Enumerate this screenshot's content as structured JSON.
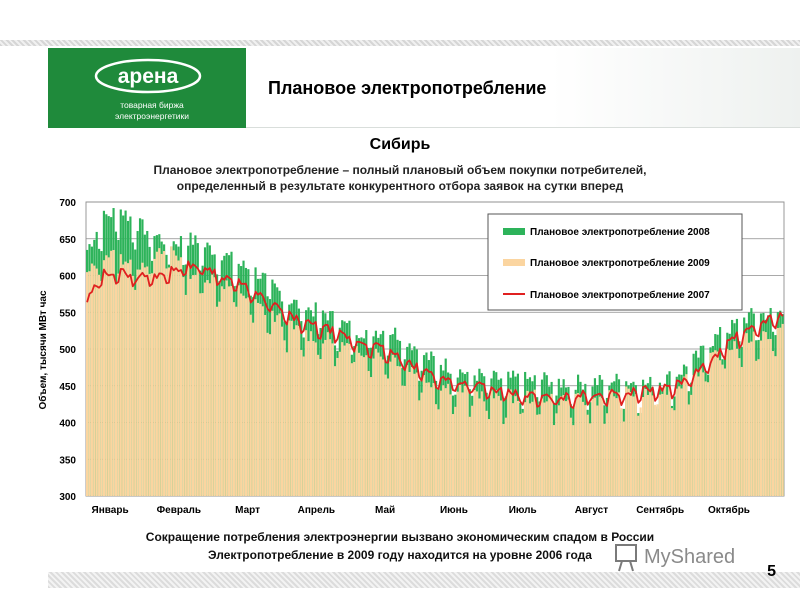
{
  "header": {
    "title": "Плановое электропотребление",
    "logo_text": "арена",
    "logo_caption_1": "товарная биржа",
    "logo_caption_2": "электроэнергетики"
  },
  "region": "Сибирь",
  "subtitle_line1": "Плановое электропотребление – полный плановый объем покупки потребителей,",
  "subtitle_line2": "определенный в результате конкурентного отбора заявок на сутки вперед",
  "footer_line1": "Сокращение потребления электроэнергии вызвано экономическим спадом в России",
  "footer_line2": "Электропотребление в 2009 году находится на уровне 2006 года",
  "page_number": "5",
  "watermark_text": "MyShared",
  "colors": {
    "series_2008": "#2db35a",
    "series_2009": "#fbd5a0",
    "series_2007": "#e02020",
    "logo_bg": "#1f8a3b"
  },
  "chart_data": {
    "type": "bar",
    "ylabel": "Объем, тысячи МВт час",
    "ylim": [
      300,
      700
    ],
    "yticks": [
      300,
      350,
      400,
      450,
      500,
      550,
      600,
      650,
      700
    ],
    "months": [
      "Январь",
      "Февраль",
      "Март",
      "Апрель",
      "Май",
      "Июнь",
      "Июль",
      "Август",
      "Сентябрь",
      "Октябрь"
    ],
    "grid": true,
    "legend_position": "top-right",
    "series": [
      {
        "name": "Плановое электропотребление 2008",
        "kind": "bar",
        "color": "#2db35a",
        "weekly": [
          635,
          680,
          690,
          670,
          655,
          645,
          650,
          640,
          630,
          615,
          605,
          585,
          565,
          555,
          550,
          535,
          525,
          525,
          525,
          510,
          490,
          480,
          470,
          465,
          460,
          460,
          458,
          460,
          455,
          455,
          455,
          458,
          456,
          452,
          458,
          470,
          490,
          515,
          530,
          545,
          548,
          550
        ]
      },
      {
        "name": "Плановое электропотребление 2009",
        "kind": "bar",
        "color": "#fbd5a0",
        "weekly": [
          600,
          630,
          625,
          615,
          625,
          640,
          605,
          600,
          590,
          580,
          560,
          545,
          530,
          520,
          515,
          505,
          500,
          495,
          490,
          475,
          460,
          450,
          445,
          440,
          435,
          435,
          435,
          435,
          432,
          430,
          432,
          438,
          440,
          440,
          445,
          455,
          470,
          490,
          505,
          515,
          520,
          525
        ]
      },
      {
        "name": "Плановое электропотребление 2007",
        "kind": "line",
        "color": "#e02020",
        "weekly": [
          565,
          605,
          605,
          600,
          600,
          608,
          615,
          612,
          600,
          590,
          575,
          560,
          545,
          535,
          530,
          520,
          510,
          505,
          495,
          480,
          470,
          460,
          455,
          452,
          445,
          440,
          438,
          435,
          435,
          438,
          440,
          440,
          442,
          445,
          448,
          455,
          470,
          490,
          515,
          525,
          540,
          548
        ]
      }
    ]
  }
}
